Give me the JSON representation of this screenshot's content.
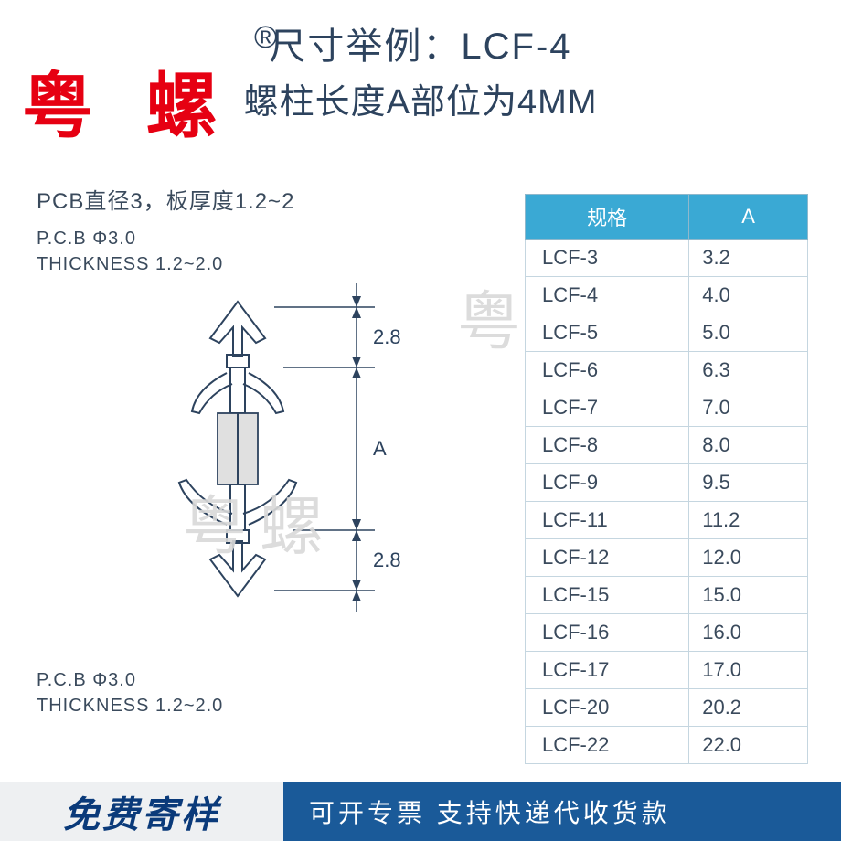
{
  "header": {
    "title_line1": "尺寸举例：LCF-4",
    "title_line2": "螺柱长度A部位为4MM",
    "registered_mark": "®"
  },
  "watermarks": {
    "red": "粤 螺",
    "grey1": "粤螺",
    "grey2": "粤螺"
  },
  "diagram": {
    "pcb_title": "PCB直径3，板厚度1.2~2",
    "pcb_line1": "P.C.B   Φ3.0",
    "pcb_line2": "THICKNESS 1.2~2.0",
    "dim_top": "2.8",
    "dim_mid": "A",
    "dim_bot": "2.8",
    "line_color": "#2d435e",
    "shade_color": "#e8e8e8"
  },
  "table": {
    "header_spec": "规格",
    "header_a": "A",
    "header_bg": "#3aa9d4",
    "rows": [
      {
        "spec": "LCF-3",
        "a": "3.2"
      },
      {
        "spec": "LCF-4",
        "a": "4.0"
      },
      {
        "spec": "LCF-5",
        "a": "5.0"
      },
      {
        "spec": "LCF-6",
        "a": "6.3"
      },
      {
        "spec": "LCF-7",
        "a": "7.0"
      },
      {
        "spec": "LCF-8",
        "a": "8.0"
      },
      {
        "spec": "LCF-9",
        "a": "9.5"
      },
      {
        "spec": "LCF-11",
        "a": "11.2"
      },
      {
        "spec": "LCF-12",
        "a": "12.0"
      },
      {
        "spec": "LCF-15",
        "a": "15.0"
      },
      {
        "spec": "LCF-16",
        "a": "16.0"
      },
      {
        "spec": "LCF-17",
        "a": "17.0"
      },
      {
        "spec": "LCF-20",
        "a": "20.2"
      },
      {
        "spec": "LCF-22",
        "a": "22.0"
      }
    ]
  },
  "footer": {
    "left": "免费寄样",
    "right": "可开专票 支持快递代收货款"
  }
}
